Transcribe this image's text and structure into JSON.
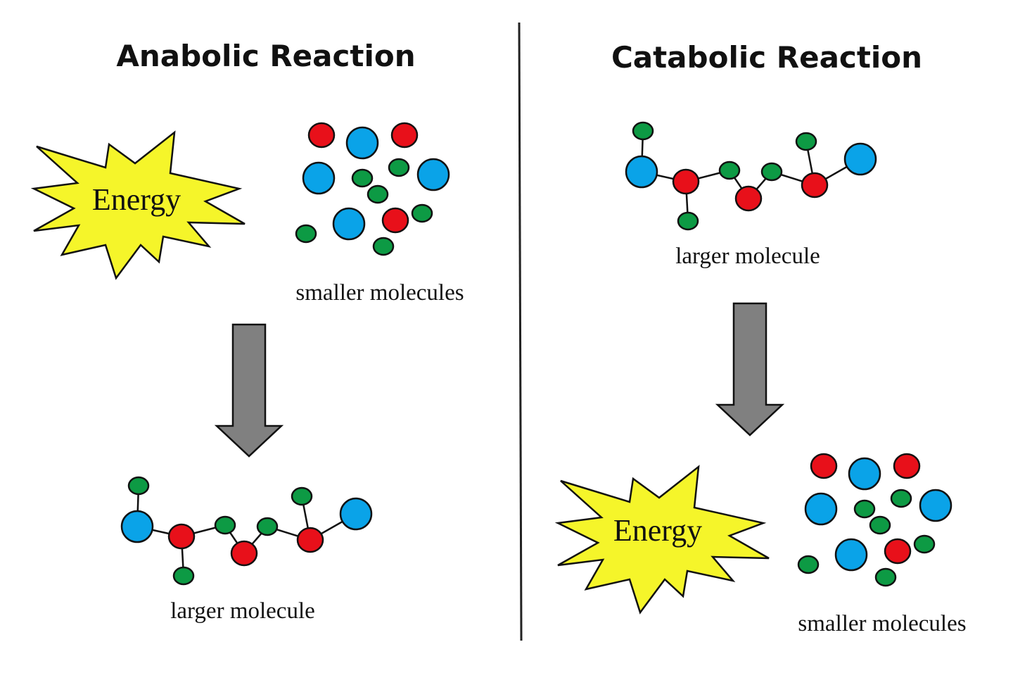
{
  "anabolic": {
    "title": "Anabolic Reaction",
    "energy_label": "Energy",
    "input_label": "smaller molecules",
    "output_label": "larger molecule"
  },
  "catabolic": {
    "title": "Catabolic Reaction",
    "energy_label": "Energy",
    "input_label": "larger molecule",
    "output_label": "smaller molecules"
  },
  "colors": {
    "red_atom": "#e8101a",
    "blue_atom": "#0aa3e8",
    "green_atom": "#0d9a44",
    "energy_burst": "#f5f52a",
    "arrow": "#808080"
  }
}
